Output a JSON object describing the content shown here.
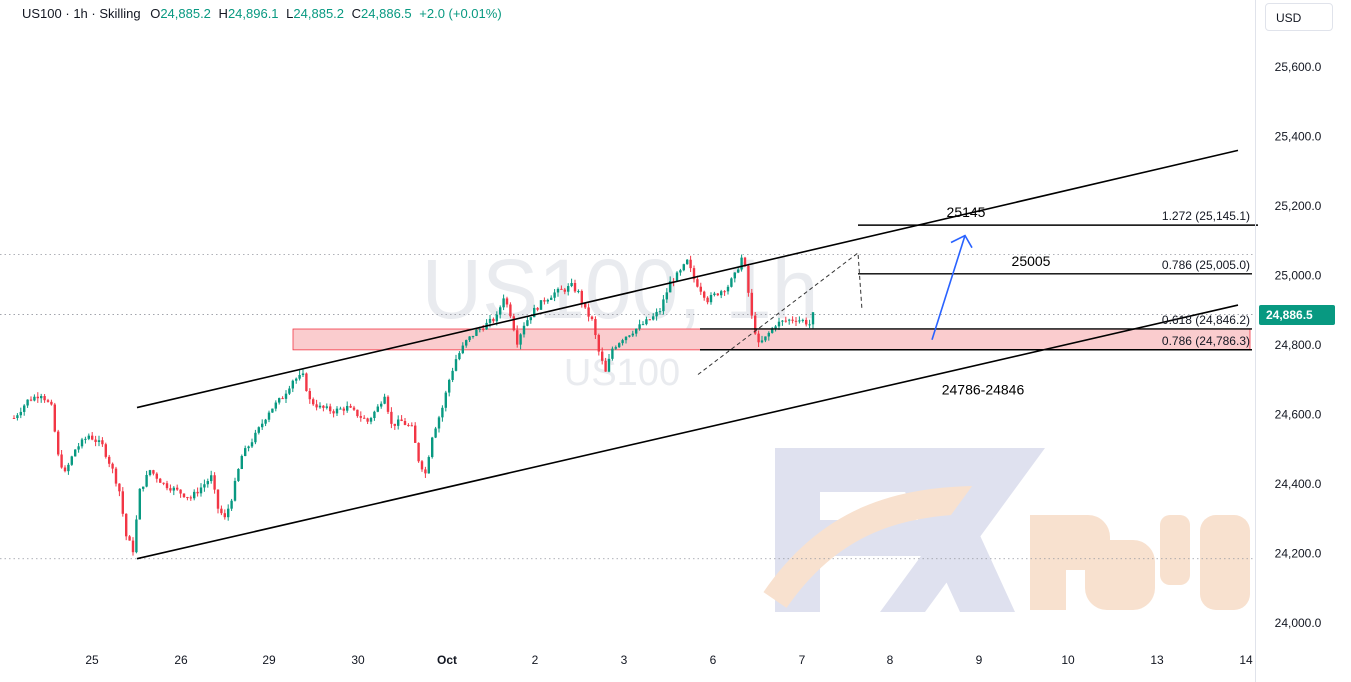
{
  "header": {
    "symbol": "US100",
    "interval": "1h",
    "source": "Skilling",
    "open_label": "O",
    "open": "24,885.2",
    "high_label": "H",
    "high": "24,896.1",
    "low_label": "L",
    "low": "24,885.2",
    "close_label": "C",
    "close": "24,886.5",
    "change": "+2.0 (+0.01%)"
  },
  "currency": "USD",
  "current_price_label": "24,886.5",
  "watermark": {
    "symbol_big": "US100, 1h",
    "symbol_small": "US100",
    "brand": "FXpay"
  },
  "colors": {
    "up": "#089981",
    "down": "#f23645",
    "zone_fill": "#f9c6c9",
    "zone_border": "#f23645",
    "arrow": "#2962ff",
    "price_tag": "#089981"
  },
  "chart_data": {
    "type": "candlestick",
    "y_ticks": [
      "24,000.0",
      "24,200.0",
      "24,400.0",
      "24,600.0",
      "24,800.0",
      "25,000.0",
      "25,200.0",
      "25,400.0",
      "25,600.0"
    ],
    "ylim": [
      23950,
      25720
    ],
    "x_ticks": [
      "25",
      "26",
      "29",
      "30",
      "Oct",
      "2",
      "3",
      "6",
      "7",
      "8",
      "9",
      "10",
      "13",
      "14"
    ],
    "close_path": [
      [
        0,
        24590
      ],
      [
        4,
        24640
      ],
      [
        8,
        24660
      ],
      [
        11,
        24620
      ],
      [
        13,
        24480
      ],
      [
        15,
        24430
      ],
      [
        18,
        24500
      ],
      [
        22,
        24540
      ],
      [
        26,
        24510
      ],
      [
        29,
        24440
      ],
      [
        31,
        24380
      ],
      [
        33,
        24250
      ],
      [
        35,
        24210
      ],
      [
        37,
        24380
      ],
      [
        40,
        24440
      ],
      [
        44,
        24400
      ],
      [
        48,
        24380
      ],
      [
        52,
        24360
      ],
      [
        56,
        24400
      ],
      [
        58,
        24420
      ],
      [
        60,
        24330
      ],
      [
        62,
        24300
      ],
      [
        64,
        24360
      ],
      [
        67,
        24480
      ],
      [
        71,
        24540
      ],
      [
        75,
        24610
      ],
      [
        79,
        24650
      ],
      [
        82,
        24700
      ],
      [
        85,
        24710
      ],
      [
        87,
        24640
      ],
      [
        90,
        24620
      ],
      [
        94,
        24610
      ],
      [
        98,
        24620
      ],
      [
        101,
        24600
      ],
      [
        104,
        24580
      ],
      [
        107,
        24620
      ],
      [
        109,
        24660
      ],
      [
        111,
        24570
      ],
      [
        114,
        24580
      ],
      [
        117,
        24560
      ],
      [
        119,
        24470
      ],
      [
        121,
        24430
      ],
      [
        123,
        24540
      ],
      [
        126,
        24620
      ],
      [
        128,
        24700
      ],
      [
        130,
        24760
      ],
      [
        133,
        24810
      ],
      [
        136,
        24840
      ],
      [
        139,
        24860
      ],
      [
        142,
        24880
      ],
      [
        144,
        24940
      ],
      [
        146,
        24890
      ],
      [
        148,
        24810
      ],
      [
        150,
        24860
      ],
      [
        153,
        24900
      ],
      [
        156,
        24930
      ],
      [
        159,
        24950
      ],
      [
        162,
        24960
      ],
      [
        164,
        24970
      ],
      [
        166,
        24950
      ],
      [
        168,
        24900
      ],
      [
        170,
        24870
      ],
      [
        172,
        24780
      ],
      [
        174,
        24720
      ],
      [
        176,
        24790
      ],
      [
        179,
        24820
      ],
      [
        182,
        24840
      ],
      [
        185,
        24860
      ],
      [
        188,
        24880
      ],
      [
        190,
        24900
      ],
      [
        193,
        24980
      ],
      [
        196,
        25010
      ],
      [
        198,
        25040
      ],
      [
        200,
        24990
      ],
      [
        202,
        24960
      ],
      [
        204,
        24930
      ],
      [
        207,
        24950
      ],
      [
        210,
        24970
      ],
      [
        212,
        25000
      ],
      [
        214,
        25050
      ],
      [
        215,
        25020
      ],
      [
        217,
        24880
      ],
      [
        219,
        24800
      ],
      [
        221,
        24820
      ],
      [
        224,
        24860
      ],
      [
        227,
        24870
      ],
      [
        230,
        24875
      ],
      [
        232,
        24870
      ],
      [
        234,
        24860
      ],
      [
        235,
        24886.5
      ]
    ],
    "annotations": [
      {
        "label": "25145",
        "value": 25145,
        "fib": "1.272 (25,145.1)"
      },
      {
        "label": "25005",
        "value": 25005,
        "fib": "0.786 (25,005.0)"
      },
      {
        "label": "",
        "value": 24846.2,
        "fib": "0.618 (24,846.2)"
      },
      {
        "label": "",
        "value": 24786.3,
        "fib": "0.786 (24,786.3)"
      },
      {
        "label": "24786-24846",
        "zone": [
          24786,
          24846
        ]
      }
    ],
    "channel": {
      "upper": [
        [
          25,
          24620
        ],
        [
          248,
          25360
        ]
      ],
      "lower": [
        [
          25,
          24185
        ],
        [
          248,
          24915
        ]
      ]
    },
    "dotted_levels": [
      25060,
      24888,
      24185
    ]
  }
}
